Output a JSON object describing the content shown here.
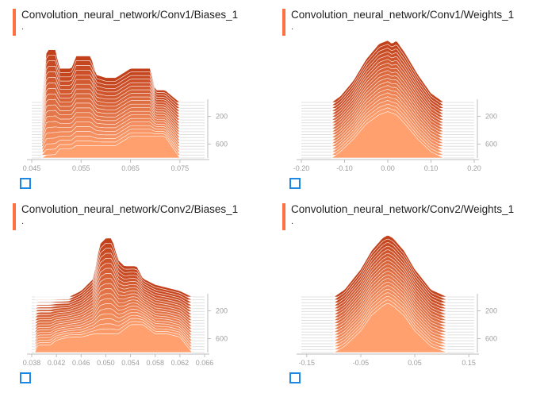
{
  "theme": {
    "accent": "#ff7043",
    "grid": "#e0e0e0",
    "axis": "#bdbdbd",
    "stroke": "#ffffff"
  },
  "cards": [
    {
      "title": "Convolution_neural_network/Conv1/Biases_1",
      "subtitle": ".",
      "expand_icon": "fullscreen-icon",
      "chart_data": {
        "type": "histogram-ridgeline",
        "xlim": [
          0.045,
          0.08
        ],
        "x_ticks": [
          0.045,
          0.055,
          0.065,
          0.075
        ],
        "x_tick_labels": [
          "0.045",
          "0.055",
          "0.065",
          "0.075"
        ],
        "y_ticks": [
          200,
          600
        ],
        "y_tick_labels": [
          "200",
          "600"
        ],
        "y_range": [
          0,
          800
        ],
        "series": [
          {
            "step": 0,
            "x": [
              0.047,
              0.048,
              0.049,
              0.05,
              0.0505,
              0.051,
              0.052,
              0.053,
              0.054,
              0.055,
              0.056,
              0.057,
              0.058,
              0.06,
              0.062,
              0.065,
              0.067,
              0.069,
              0.07,
              0.072,
              0.075
            ],
            "y": [
              0,
              0.85,
              0.85,
              0.85,
              0.55,
              0.55,
              0.55,
              0.55,
              0.75,
              0.75,
              0.75,
              0.75,
              0.45,
              0.4,
              0.4,
              0.55,
              0.55,
              0.55,
              0.2,
              0.2,
              0
            ]
          },
          {
            "step": 800,
            "x": [
              0.047,
              0.048,
              0.049,
              0.05,
              0.0505,
              0.051,
              0.052,
              0.053,
              0.054,
              0.055,
              0.056,
              0.057,
              0.058,
              0.06,
              0.062,
              0.065,
              0.067,
              0.069,
              0.07,
              0.072,
              0.075
            ],
            "y": [
              0,
              0.05,
              0.05,
              0.06,
              0.15,
              0.15,
              0.15,
              0.15,
              0.2,
              0.2,
              0.2,
              0.2,
              0.2,
              0.2,
              0.2,
              0.35,
              0.35,
              0.35,
              0.35,
              0.35,
              0
            ]
          }
        ]
      }
    },
    {
      "title": "Convolution_neural_network/Conv1/Weights_1",
      "subtitle": ".",
      "expand_icon": "fullscreen-icon",
      "chart_data": {
        "type": "histogram-ridgeline",
        "xlim": [
          -0.2,
          0.2
        ],
        "x_ticks": [
          -0.2,
          -0.1,
          0,
          0.1,
          0.2
        ],
        "x_tick_labels": [
          "-0.20",
          "-0.10",
          "0.00",
          "0.10",
          "0.20"
        ],
        "y_ticks": [
          200,
          600
        ],
        "y_tick_labels": [
          "200",
          "600"
        ],
        "y_range": [
          0,
          800
        ],
        "series": [
          {
            "step": 0,
            "x": [
              -0.13,
              -0.11,
              -0.08,
              -0.05,
              -0.02,
              0,
              0.01,
              0.02,
              0.04,
              0.07,
              0.1,
              0.13
            ],
            "y": [
              0,
              0.1,
              0.35,
              0.7,
              0.95,
              1,
              0.95,
              1,
              0.8,
              0.45,
              0.15,
              0
            ]
          },
          {
            "step": 800,
            "x": [
              -0.13,
              -0.11,
              -0.08,
              -0.05,
              -0.02,
              0,
              0.02,
              0.04,
              0.07,
              0.1,
              0.13
            ],
            "y": [
              0,
              0.1,
              0.3,
              0.55,
              0.7,
              0.75,
              0.7,
              0.55,
              0.3,
              0.1,
              0
            ]
          }
        ]
      }
    },
    {
      "title": "Convolution_neural_network/Conv2/Biases_1",
      "subtitle": ".",
      "expand_icon": "fullscreen-icon",
      "chart_data": {
        "type": "histogram-ridgeline",
        "xlim": [
          0.038,
          0.066
        ],
        "x_ticks": [
          0.038,
          0.042,
          0.046,
          0.05,
          0.054,
          0.058,
          0.062,
          0.066
        ],
        "x_tick_labels": [
          "0.038",
          "0.042",
          "0.046",
          "0.050",
          "0.054",
          "0.058",
          "0.062",
          "0.066"
        ],
        "y_ticks": [
          200,
          600
        ],
        "y_tick_labels": [
          "200",
          "600"
        ],
        "y_range": [
          0,
          800
        ],
        "series": [
          {
            "step": 0,
            "x": [
              0.044,
              0.046,
              0.048,
              0.049,
              0.05,
              0.051,
              0.052,
              0.053,
              0.055,
              0.056,
              0.057,
              0.058,
              0.06,
              0.062,
              0.064
            ],
            "y": [
              0,
              0.1,
              0.3,
              0.85,
              0.95,
              0.95,
              0.6,
              0.5,
              0.5,
              0.3,
              0.25,
              0.2,
              0.15,
              0.1,
              0
            ]
          },
          {
            "step": 800,
            "x": [
              0.0385,
              0.039,
              0.041,
              0.042,
              0.044,
              0.046,
              0.048,
              0.05,
              0.052,
              0.054,
              0.056,
              0.058,
              0.06,
              0.062,
              0.064
            ],
            "y": [
              0,
              0.12,
              0.12,
              0.2,
              0.25,
              0.25,
              0.3,
              0.3,
              0.3,
              0.45,
              0.45,
              0.3,
              0.3,
              0.25,
              0
            ]
          }
        ]
      }
    },
    {
      "title": "Convolution_neural_network/Conv2/Weights_1",
      "subtitle": ".",
      "expand_icon": "fullscreen-icon",
      "chart_data": {
        "type": "histogram-ridgeline",
        "xlim": [
          -0.16,
          0.16
        ],
        "x_ticks": [
          -0.15,
          -0.05,
          0.05,
          0.15
        ],
        "x_tick_labels": [
          "-0.15",
          "-0.05",
          "0.05",
          "0.15"
        ],
        "y_ticks": [
          200,
          600
        ],
        "y_tick_labels": [
          "200",
          "600"
        ],
        "y_range": [
          0,
          800
        ],
        "series": [
          {
            "step": 0,
            "x": [
              -0.1,
              -0.08,
              -0.05,
              -0.03,
              -0.01,
              0,
              0.01,
              0.03,
              0.05,
              0.08,
              0.11
            ],
            "y": [
              0,
              0.12,
              0.45,
              0.75,
              0.95,
              1,
              0.95,
              0.75,
              0.45,
              0.12,
              0
            ]
          },
          {
            "step": 800,
            "x": [
              -0.1,
              -0.08,
              -0.05,
              -0.03,
              -0.01,
              0,
              0.01,
              0.03,
              0.05,
              0.08,
              0.11
            ],
            "y": [
              0,
              0.1,
              0.35,
              0.6,
              0.75,
              0.8,
              0.75,
              0.6,
              0.35,
              0.1,
              0
            ]
          }
        ]
      }
    }
  ]
}
